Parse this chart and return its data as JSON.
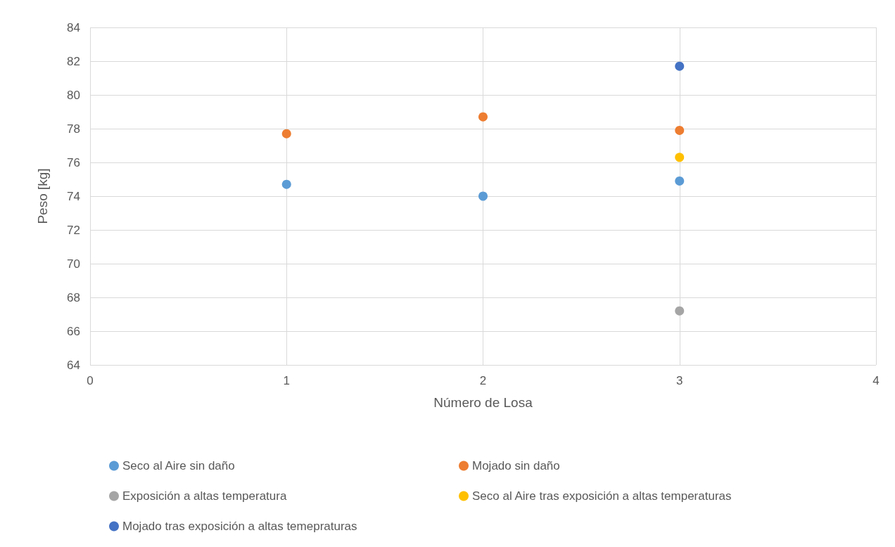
{
  "chart_data": {
    "type": "scatter",
    "xlabel": "Número de Losa",
    "ylabel": "Peso [kg]",
    "x": [
      1,
      2,
      3
    ],
    "xlim": [
      0,
      4
    ],
    "xticks": [
      0,
      1,
      2,
      3,
      4
    ],
    "ylim": [
      64,
      84
    ],
    "yticks": [
      64,
      66,
      68,
      70,
      72,
      74,
      76,
      78,
      80,
      82,
      84
    ],
    "grid": true,
    "legend": "bottom",
    "marker": "circle",
    "series": [
      {
        "name": "Seco al Aire sin daño",
        "color": "#5b9bd5",
        "values": [
          74.7,
          74.0,
          74.9
        ]
      },
      {
        "name": "Mojado sin daño",
        "color": "#ed7d31",
        "values": [
          77.7,
          78.7,
          77.9
        ]
      },
      {
        "name": "Exposición a altas temperatura",
        "color": "#a5a5a5",
        "values": [
          null,
          null,
          67.2
        ]
      },
      {
        "name": "Seco al Aire tras exposición a altas temperaturas",
        "color": "#ffc000",
        "values": [
          null,
          null,
          76.3
        ]
      },
      {
        "name": "Mojado tras exposición a altas temepraturas",
        "color": "#4472c4",
        "values": [
          null,
          null,
          81.7
        ]
      }
    ]
  }
}
